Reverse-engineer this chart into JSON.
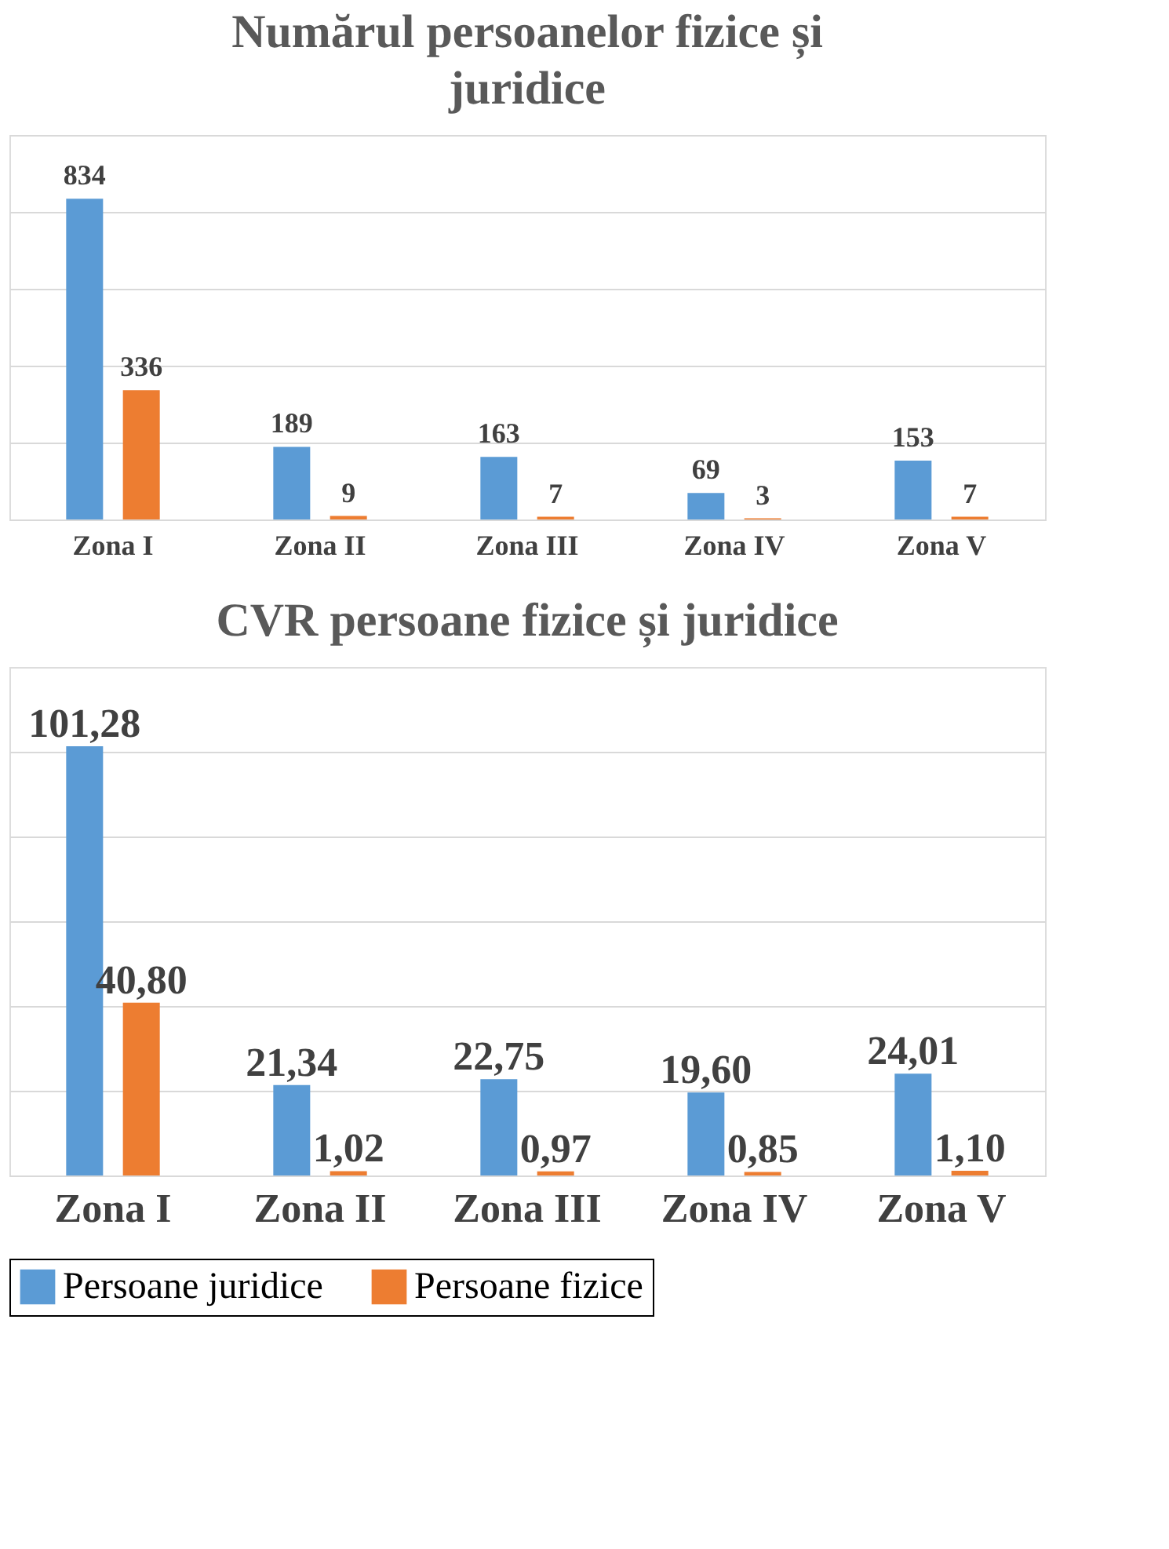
{
  "chart_data": [
    {
      "type": "bar",
      "title": "Numărul persoanelor fizice și juridice",
      "categories": [
        "Zona I",
        "Zona II",
        "Zona III",
        "Zona IV",
        "Zona V"
      ],
      "series": [
        {
          "name": "Persoane juridice",
          "color": "#5b9bd5",
          "values": [
            834,
            189,
            163,
            69,
            153
          ]
        },
        {
          "name": "Persoane fizice",
          "color": "#ed7d31",
          "values": [
            336,
            9,
            7,
            3,
            7
          ]
        }
      ],
      "ylim": [
        0,
        1000
      ],
      "yticks": [
        {
          "value": 0,
          "label": null
        },
        {
          "value": 200,
          "label": null
        },
        {
          "value": 400,
          "label": null
        },
        {
          "value": 600,
          "label": null
        },
        {
          "value": 800,
          "label": null
        },
        {
          "value": 1000,
          "label": null
        }
      ],
      "grid": "y",
      "tick_labels": "x",
      "data_labels": true,
      "legend": "bottom"
    },
    {
      "type": "bar",
      "title": "CVR persoane fizice și juridice",
      "categories": [
        "Zona I",
        "Zona II",
        "Zona III",
        "Zona IV",
        "Zona V"
      ],
      "series": [
        {
          "name": "Persoane juridice",
          "color": "#5b9bd5",
          "values": [
            101.28,
            21.34,
            22.75,
            19.6,
            24.01
          ],
          "value_labels": [
            "101,28",
            "21,34",
            "22,75",
            "19,60",
            "24,01"
          ]
        },
        {
          "name": "Persoane fizice",
          "color": "#ed7d31",
          "values": [
            40.8,
            1.02,
            0.97,
            0.85,
            1.1
          ],
          "value_labels": [
            "40,80",
            "1,02",
            "0,97",
            "0,85",
            "1,10"
          ]
        }
      ],
      "ylim": [
        0,
        120
      ],
      "yticks": [
        {
          "value": 0,
          "label": null
        },
        {
          "value": 20,
          "label": null
        },
        {
          "value": 40,
          "label": null
        },
        {
          "value": 60,
          "label": null
        },
        {
          "value": 80,
          "label": null
        },
        {
          "value": 100,
          "label": null
        }
      ],
      "grid": "y",
      "tick_labels": "x",
      "legend": "bottom"
    }
  ]
}
